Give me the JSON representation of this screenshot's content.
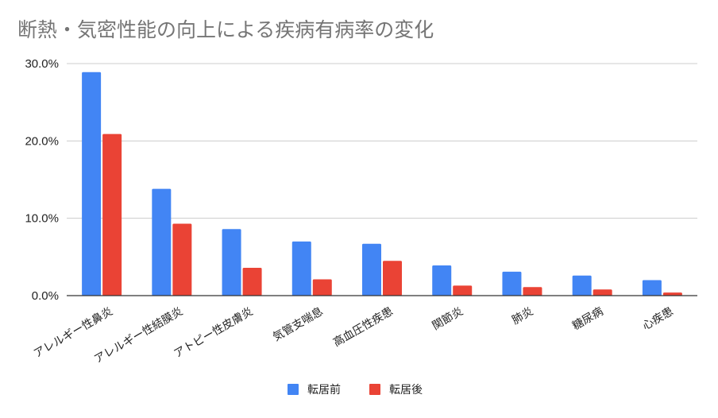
{
  "chart_data": {
    "type": "bar",
    "title": "断熱・気密性能の向上による疾病有病率の変化",
    "categories": [
      "アレルギー性鼻炎",
      "アレルギー性結膜炎",
      "アトピー性皮膚炎",
      "気管支喘息",
      "高血圧性疾患",
      "関節炎",
      "肺炎",
      "糖尿病",
      "心疾患"
    ],
    "series": [
      {
        "name": "転居前",
        "color": "#4285f4",
        "values": [
          28.9,
          13.8,
          8.6,
          7.0,
          6.7,
          3.9,
          3.1,
          2.6,
          2.0
        ]
      },
      {
        "name": "転居後",
        "color": "#ea4335",
        "values": [
          20.9,
          9.3,
          3.6,
          2.1,
          4.5,
          1.3,
          1.1,
          0.8,
          0.4
        ]
      }
    ],
    "y_ticks": [
      0,
      10,
      20,
      30
    ],
    "y_tick_labels": [
      "0.0%",
      "10.0%",
      "20.0%",
      "30.0%"
    ],
    "ylim": [
      0,
      30
    ],
    "xlabel": "",
    "ylabel": "",
    "grid": true,
    "legend_position": "bottom"
  }
}
